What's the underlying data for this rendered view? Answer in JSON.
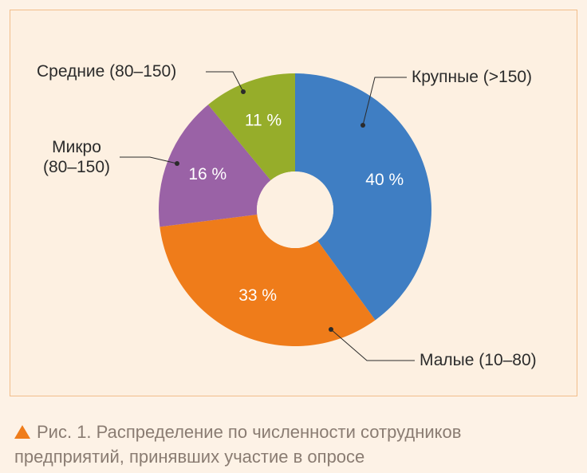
{
  "chart_data": {
    "type": "pie",
    "donut": true,
    "categories": [
      "Крупные (>150)",
      "Малые (10–80)",
      "Микро (80–150)",
      "Средние (80–150)"
    ],
    "values": [
      40,
      33,
      16,
      11
    ],
    "value_labels": [
      "40 %",
      "33 %",
      "16 %",
      "11 %"
    ],
    "colors": [
      "#3f7ec3",
      "#ef7c1a",
      "#9a62a6",
      "#96ad2a"
    ]
  },
  "caption": "Рис. 1. Распределение по численности сотрудников предприятий, принявших участие в опросе"
}
